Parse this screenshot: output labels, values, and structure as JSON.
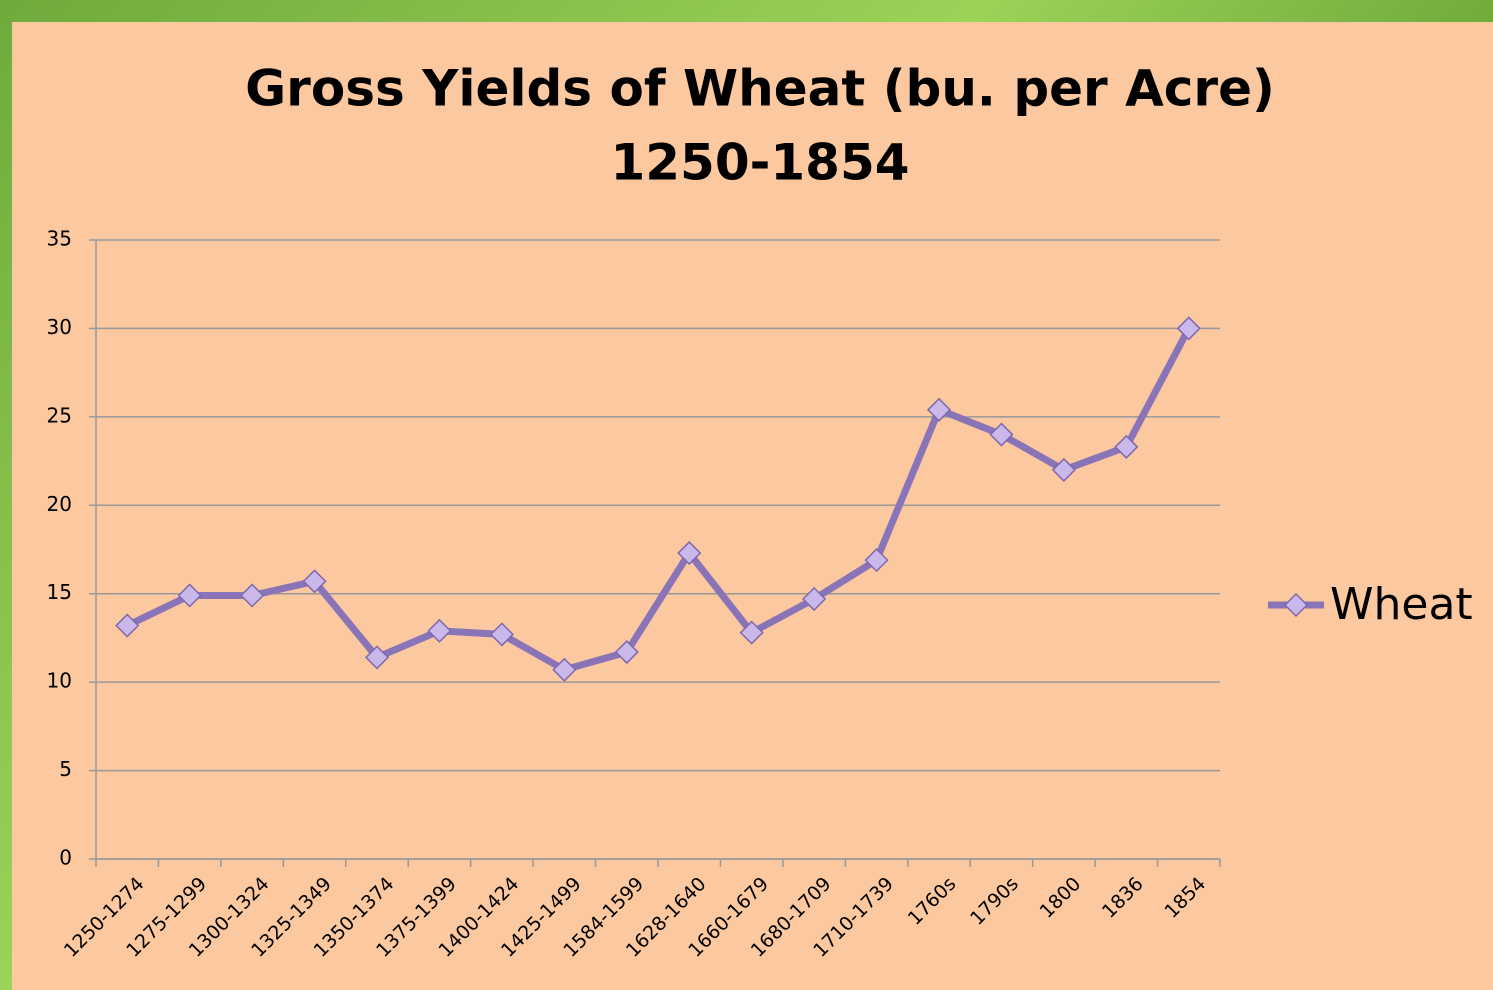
{
  "chart_data": {
    "type": "line",
    "title": [
      "Gross Yields of Wheat (bu. per Acre)",
      "1250-1854"
    ],
    "categories": [
      "1250-1274",
      "1275-1299",
      "1300-1324",
      "1325-1349",
      "1350-1374",
      "1375-1399",
      "1400-1424",
      "1425-1499",
      "1584-1599",
      "1628-1640",
      "1660-1679",
      "1680-1709",
      "1710-1739",
      "1760s",
      "1790s",
      "1800",
      "1836",
      "1854"
    ],
    "series": [
      {
        "name": "Wheat",
        "color": "#8a74b8",
        "values": [
          13.2,
          14.9,
          14.9,
          15.7,
          11.4,
          12.9,
          12.7,
          10.7,
          11.7,
          17.3,
          12.8,
          14.7,
          16.9,
          25.4,
          24.0,
          22.0,
          23.3,
          30.0
        ]
      }
    ],
    "ylim": [
      0,
      35
    ],
    "yticks": [
      0,
      5,
      10,
      15,
      20,
      25,
      30,
      35
    ],
    "grid": true,
    "legend": "right"
  }
}
